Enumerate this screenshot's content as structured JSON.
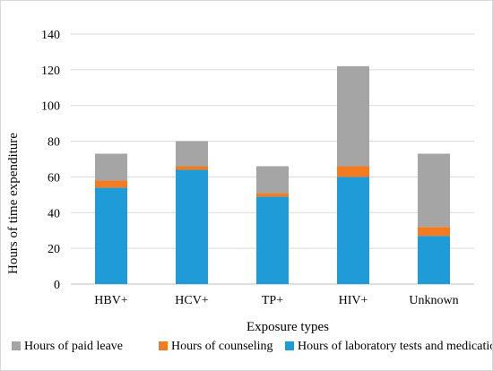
{
  "chart_data": {
    "type": "bar",
    "stacked": true,
    "categories": [
      "HBV+",
      "HCV+",
      "TP+",
      "HIV+",
      "Unknown"
    ],
    "series": [
      {
        "name": "Hours of laboratory tests and medication",
        "color": "#1f9bd7",
        "values": [
          54,
          64,
          49,
          60,
          27
        ]
      },
      {
        "name": "Hours of counseling",
        "color": "#f47b20",
        "values": [
          4,
          2,
          2,
          6,
          5
        ]
      },
      {
        "name": "Hours of paid leave",
        "color": "#a5a5a5",
        "values": [
          15,
          14,
          15,
          56,
          41
        ]
      }
    ],
    "title": "",
    "xlabel": "Exposure types",
    "ylabel": "Hours of time expenditure",
    "ylim": [
      0,
      140
    ],
    "yticks": [
      0,
      20,
      40,
      60,
      80,
      100,
      120,
      140
    ],
    "grid": true,
    "legend_position": "bottom",
    "legend_order": [
      "Hours of paid leave",
      "Hours of counseling",
      "Hours of laboratory tests and medication"
    ]
  }
}
